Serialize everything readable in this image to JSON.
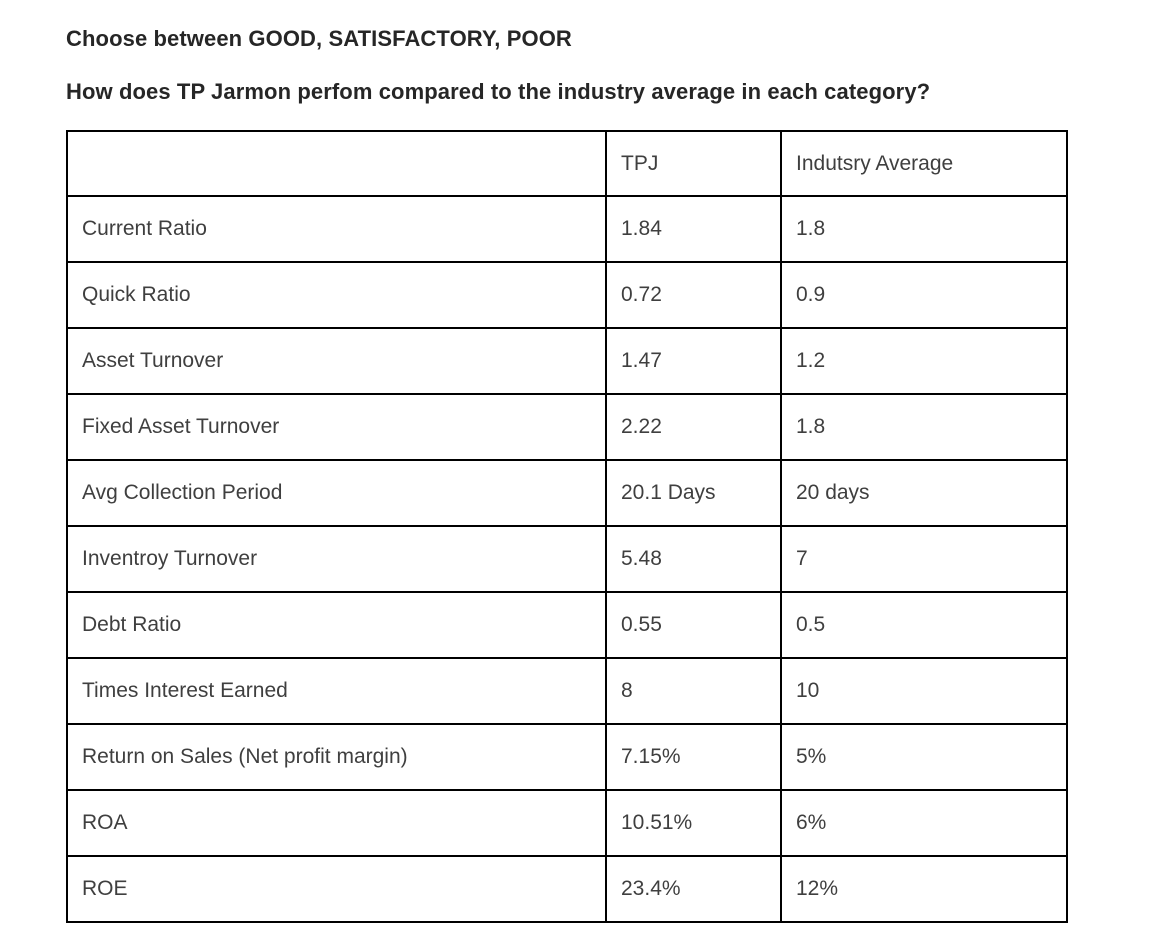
{
  "page": {
    "instruction": "Choose between GOOD, SATISFACTORY, POOR",
    "question": "How does TP Jarmon perfom compared to the industry average in each category?"
  },
  "table": {
    "columns": [
      "",
      "TPJ",
      "Indutsry Average"
    ],
    "rows": [
      {
        "category": "Current Ratio",
        "tpj": "1.84",
        "industry": "1.8"
      },
      {
        "category": "Quick Ratio",
        "tpj": "0.72",
        "industry": "0.9"
      },
      {
        "category": "Asset Turnover",
        "tpj": "1.47",
        "industry": "1.2"
      },
      {
        "category": "Fixed Asset Turnover",
        "tpj": "2.22",
        "industry": "1.8"
      },
      {
        "category": "Avg Collection Period",
        "tpj": "20.1 Days",
        "industry": "20 days"
      },
      {
        "category": "Inventroy Turnover",
        "tpj": "5.48",
        "industry": "7"
      },
      {
        "category": "Debt Ratio",
        "tpj": "0.55",
        "industry": "0.5"
      },
      {
        "category": "Times Interest Earned",
        "tpj": "8",
        "industry": "10"
      },
      {
        "category": "Return on Sales (Net profit margin)",
        "tpj": "7.15%",
        "industry": "5%"
      },
      {
        "category": "ROA",
        "tpj": "10.51%",
        "industry": "6%"
      },
      {
        "category": "ROE",
        "tpj": "23.4%",
        "industry": "12%"
      }
    ]
  },
  "colors": {
    "heading_text": "#262626",
    "body_text": "#3f3f3f",
    "table_border": "#000000",
    "background": "#ffffff"
  }
}
